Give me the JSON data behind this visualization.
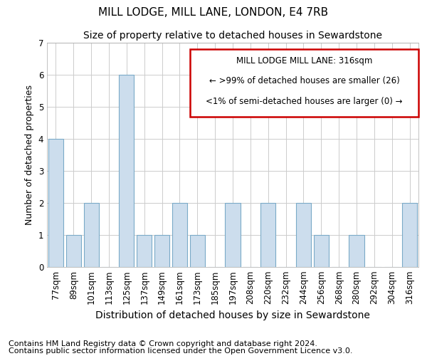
{
  "title": "MILL LODGE, MILL LANE, LONDON, E4 7RB",
  "subtitle": "Size of property relative to detached houses in Sewardstone",
  "xlabel": "Distribution of detached houses by size in Sewardstone",
  "ylabel": "Number of detached properties",
  "footnote1": "Contains HM Land Registry data © Crown copyright and database right 2024.",
  "footnote2": "Contains public sector information licensed under the Open Government Licence v3.0.",
  "categories": [
    "77sqm",
    "89sqm",
    "101sqm",
    "113sqm",
    "125sqm",
    "137sqm",
    "149sqm",
    "161sqm",
    "173sqm",
    "185sqm",
    "197sqm",
    "208sqm",
    "220sqm",
    "232sqm",
    "244sqm",
    "256sqm",
    "268sqm",
    "280sqm",
    "292sqm",
    "304sqm",
    "316sqm"
  ],
  "values": [
    4,
    1,
    2,
    0,
    6,
    1,
    1,
    2,
    1,
    0,
    2,
    0,
    2,
    0,
    2,
    1,
    0,
    1,
    0,
    0,
    2
  ],
  "bar_color": "#ccdded",
  "bar_edge_color": "#7aaac8",
  "box_text_line1": "MILL LODGE MILL LANE: 316sqm",
  "box_text_line2": "← >99% of detached houses are smaller (26)",
  "box_text_line3": "<1% of semi-detached houses are larger (0) →",
  "box_edge_color": "#cc0000",
  "ylim": [
    0,
    7
  ],
  "yticks": [
    0,
    1,
    2,
    3,
    4,
    5,
    6,
    7
  ],
  "title_fontsize": 11,
  "subtitle_fontsize": 10,
  "xlabel_fontsize": 10,
  "ylabel_fontsize": 9,
  "tick_fontsize": 8.5,
  "footnote_fontsize": 8
}
